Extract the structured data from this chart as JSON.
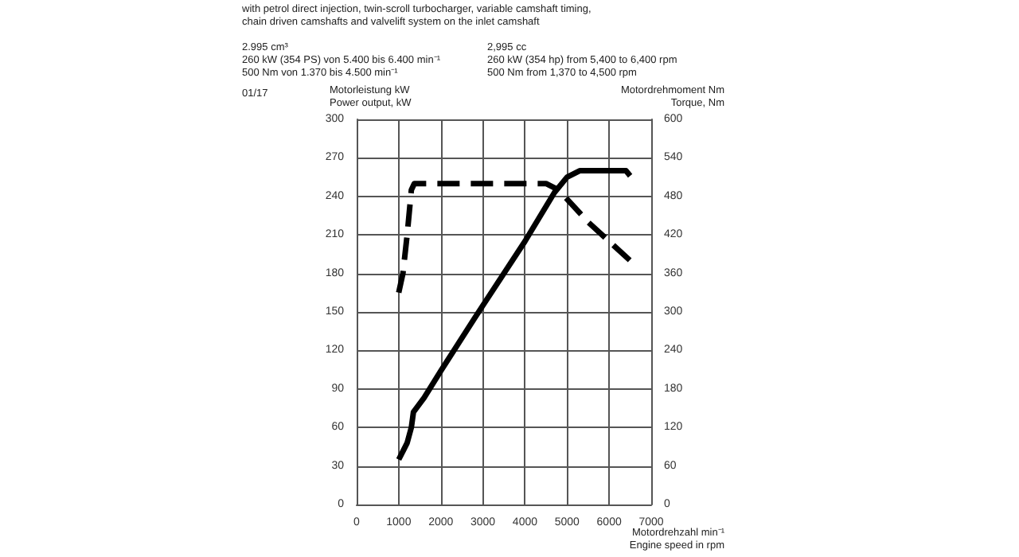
{
  "chart_data": {
    "type": "line",
    "subtitle": "with petrol direct injection, twin-scroll turbocharger, variable camshaft timing,\nchain driven camshafts and valvelift system on the inlet camshaft",
    "annotations": [
      "2.995 cm³\n260 kW (354 PS) von 5.400 bis 6.400 min⁻¹\n500 Nm von 1.370 bis 4.500 min⁻¹",
      "2,995 cc\n260 kW (354 hp) from 5,400 to 6,400 rpm\n500 Nm from 1,370 to 4,500 rpm",
      "01/17"
    ],
    "xlabel": "Motordrehzahl min⁻¹\nEngine speed in rpm",
    "ylabel": "Motorleistung kW\nPower output, kW",
    "y2label": "Motordrehmoment Nm\nTorque, Nm",
    "xlim": [
      0,
      7000
    ],
    "xticks": [
      0,
      1000,
      2000,
      3000,
      4000,
      5000,
      6000,
      7000
    ],
    "ylim": [
      0,
      300
    ],
    "yticks": [
      0,
      30,
      60,
      90,
      120,
      150,
      180,
      210,
      240,
      270,
      300
    ],
    "y2lim": [
      0,
      600
    ],
    "y2ticks": [
      0,
      60,
      120,
      180,
      240,
      300,
      360,
      420,
      480,
      540,
      600
    ],
    "grid": true,
    "marker": "none",
    "series": [
      {
        "color": "#000000",
        "line_style": "solid",
        "x": [
          1000,
          1200,
          1300,
          1350,
          1600,
          2000,
          2800,
          3000,
          4000,
          4700,
          5000,
          5300,
          6400,
          6500
        ],
        "values": [
          35,
          48,
          60,
          72,
          83,
          104,
          145,
          155,
          205,
          243,
          255,
          260,
          260,
          256
        ]
      },
      {
        "color": "#000000",
        "line_style": "dashed",
        "axis": "y2",
        "x": [
          1000,
          1100,
          1200,
          1300,
          1370,
          4500,
          4800,
          5500,
          6500
        ],
        "values": [
          330,
          360,
          420,
          490,
          500,
          500,
          490,
          440,
          380
        ]
      }
    ]
  }
}
